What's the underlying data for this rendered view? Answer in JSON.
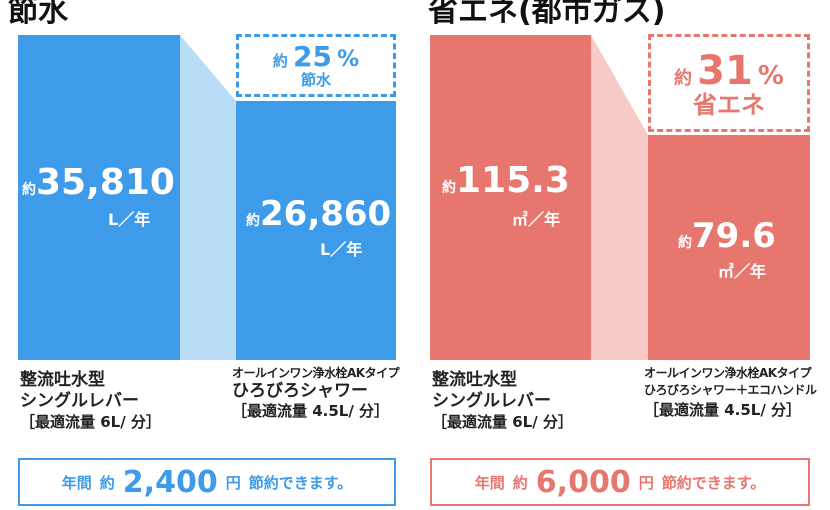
{
  "water": {
    "heading": "節水",
    "before_value": "35,810",
    "before_prefix": "約",
    "before_unit": "L／年",
    "after_value": "26,860",
    "after_prefix": "約",
    "after_unit": "L／年",
    "saving_prefix": "約",
    "saving_number": "25",
    "saving_percent": "%",
    "saving_label": "節水",
    "before_caption": [
      "整流吐水型",
      "シングルレバー",
      "［最適流量 6L/ 分］"
    ],
    "after_caption": [
      "オールインワン浄水栓AKタイプ",
      "ひろびろシャワー",
      "［最適流量 4.5L/ 分］"
    ],
    "summary": {
      "prefix": "年間",
      "yaku": "約",
      "amount": "2,400",
      "yen": "円",
      "suffix": "節約できます。"
    },
    "colors": {
      "bar": "#3d9be9",
      "connector": "#b9dcf7",
      "dashed": "#3d9be9",
      "text": "#3d9be9"
    }
  },
  "energy": {
    "heading": "省エネ(都市ガス)",
    "before_value": "115.3",
    "before_prefix": "約",
    "before_unit": "㎥／年",
    "after_value": "79.6",
    "after_prefix": "約",
    "after_unit": "㎥／年",
    "saving_prefix": "約",
    "saving_number": "31",
    "saving_percent": "%",
    "saving_label": "省エネ",
    "before_caption": [
      "整流吐水型",
      "シングルレバー",
      "［最適流量 6L/ 分］"
    ],
    "after_caption": [
      "オールインワン浄水栓AKタイプ",
      "ひろびろシャワー＋エコハンドル",
      "［最適流量 4.5L/ 分］"
    ],
    "summary": {
      "prefix": "年間",
      "yaku": "約",
      "amount": "6,000",
      "yen": "円",
      "suffix": "節約できます。"
    },
    "colors": {
      "bar": "#e7776e",
      "connector": "#f6cbc7",
      "dashed": "#e7776e",
      "text": "#e7776e"
    }
  },
  "chart_data": [
    {
      "type": "bar",
      "title": "節水",
      "categories": [
        "整流吐水型 シングルレバー",
        "オールインワン浄水栓AKタイプ ひろびろシャワー"
      ],
      "values": [
        35810,
        26860
      ],
      "unit": "L／年",
      "annotation": "約25% 節水"
    },
    {
      "type": "bar",
      "title": "省エネ(都市ガス)",
      "categories": [
        "整流吐水型 シングルレバー",
        "オールインワン浄水栓AKタイプ ひろびろシャワー＋エコハンドル"
      ],
      "values": [
        115.3,
        79.6
      ],
      "unit": "㎥／年",
      "annotation": "約31% 省エネ"
    }
  ]
}
